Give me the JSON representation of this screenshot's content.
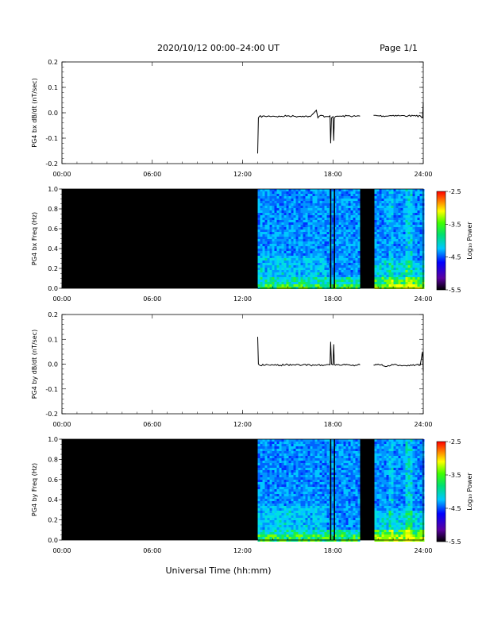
{
  "header": {
    "title": "2020/10/12  00:00–24:00 UT",
    "page": "Page 1/1"
  },
  "footer": {
    "xlabel": "Universal Time (hh:mm)"
  },
  "chart_data": [
    {
      "type": "line",
      "ylabel": "PG4 bx dB/dt (nT/sec)",
      "xlim": [
        0,
        24
      ],
      "ylim": [
        -0.2,
        0.2
      ],
      "xticks": [
        "00:00",
        "06:00",
        "12:00",
        "18:00",
        "24:00"
      ],
      "yticks": [
        "-0.2",
        "-0.1",
        "0.0",
        "0.1",
        "0.2"
      ],
      "series": [
        {
          "values_note": "",
          "x": [
            13.0,
            13.05,
            13.1,
            13.5,
            14.0,
            14.5,
            15.0,
            15.5,
            16.0,
            16.5,
            16.9,
            17.0,
            17.2,
            17.5,
            17.8,
            17.85,
            17.9,
            18.0,
            18.05,
            18.1,
            18.3,
            18.6,
            19.0,
            19.5,
            19.8,
            20.7,
            21.0,
            21.5,
            22.0,
            22.5,
            23.0,
            23.5,
            23.8,
            23.95,
            24.0
          ],
          "y": [
            -0.16,
            -0.02,
            -0.015,
            -0.014,
            -0.013,
            -0.015,
            -0.012,
            -0.014,
            -0.013,
            -0.015,
            0.01,
            -0.02,
            -0.01,
            -0.015,
            -0.012,
            -0.12,
            -0.02,
            -0.015,
            -0.11,
            -0.02,
            -0.013,
            -0.014,
            -0.012,
            -0.014,
            -0.013,
            -0.01,
            -0.012,
            -0.013,
            -0.01,
            -0.012,
            -0.012,
            -0.013,
            -0.012,
            -0.02,
            0.04
          ]
        }
      ],
      "gaps": [
        [
          0,
          13.0
        ],
        [
          19.8,
          20.7
        ]
      ]
    },
    {
      "type": "heatmap",
      "ylabel": "PG4 bx Freq (Hz)",
      "xlim": [
        0,
        24
      ],
      "ylim": [
        0,
        1.0
      ],
      "xticks": [
        "00:00",
        "06:00",
        "12:00",
        "18:00",
        "24:00"
      ],
      "yticks": [
        "0.0",
        "0.2",
        "0.4",
        "0.6",
        "0.8",
        "1.0"
      ],
      "colorbar": {
        "label": "Log₁₀ Power",
        "range": [
          -5.5,
          -2.5
        ],
        "ticks": [
          "-2.5",
          "-3.5",
          "-4.5",
          "-5.5"
        ]
      },
      "no_data_intervals": [
        [
          0,
          13.0
        ],
        [
          19.8,
          20.6
        ]
      ],
      "dark_lines_at": [
        17.85,
        18.1
      ]
    },
    {
      "type": "line",
      "ylabel": "PG4 by dB/dt (nT/sec)",
      "xlim": [
        0,
        24
      ],
      "ylim": [
        -0.2,
        0.2
      ],
      "xticks": [
        "00:00",
        "06:00",
        "12:00",
        "18:00",
        "24:00"
      ],
      "yticks": [
        "-0.2",
        "-0.1",
        "0.0",
        "0.1",
        "0.2"
      ],
      "series": [
        {
          "values_note": "",
          "x": [
            13.0,
            13.05,
            13.1,
            13.5,
            14.0,
            14.5,
            15.0,
            15.5,
            16.0,
            16.5,
            17.0,
            17.5,
            17.8,
            17.85,
            17.9,
            18.0,
            18.05,
            18.1,
            18.3,
            18.6,
            19.0,
            19.5,
            19.8,
            20.7,
            21.0,
            21.5,
            22.0,
            22.5,
            23.0,
            23.5,
            23.8,
            23.95,
            24.0
          ],
          "y": [
            0.11,
            0.0,
            -0.003,
            -0.004,
            -0.003,
            -0.004,
            -0.002,
            -0.004,
            -0.003,
            -0.004,
            -0.003,
            -0.004,
            -0.003,
            0.09,
            0.0,
            -0.003,
            0.08,
            -0.002,
            -0.003,
            -0.004,
            -0.003,
            -0.004,
            -0.003,
            -0.004,
            0.0,
            -0.01,
            -0.003,
            -0.005,
            -0.004,
            -0.003,
            -0.004,
            0.05,
            -0.03
          ]
        }
      ],
      "gaps": [
        [
          0,
          13.0
        ],
        [
          19.8,
          20.7
        ]
      ]
    },
    {
      "type": "heatmap",
      "ylabel": "PG4 by Freq (Hz)",
      "xlim": [
        0,
        24
      ],
      "ylim": [
        0,
        1.0
      ],
      "xticks": [
        "00:00",
        "06:00",
        "12:00",
        "18:00",
        "24:00"
      ],
      "yticks": [
        "0.0",
        "0.2",
        "0.4",
        "0.6",
        "0.8",
        "1.0"
      ],
      "colorbar": {
        "label": "Log₁₀ Power",
        "range": [
          -5.5,
          -2.5
        ],
        "ticks": [
          "-2.5",
          "-3.5",
          "-4.5",
          "-5.5"
        ]
      },
      "no_data_intervals": [
        [
          0,
          13.0
        ],
        [
          19.8,
          20.6
        ]
      ],
      "dark_lines_at": [
        17.85,
        18.1
      ]
    }
  ]
}
